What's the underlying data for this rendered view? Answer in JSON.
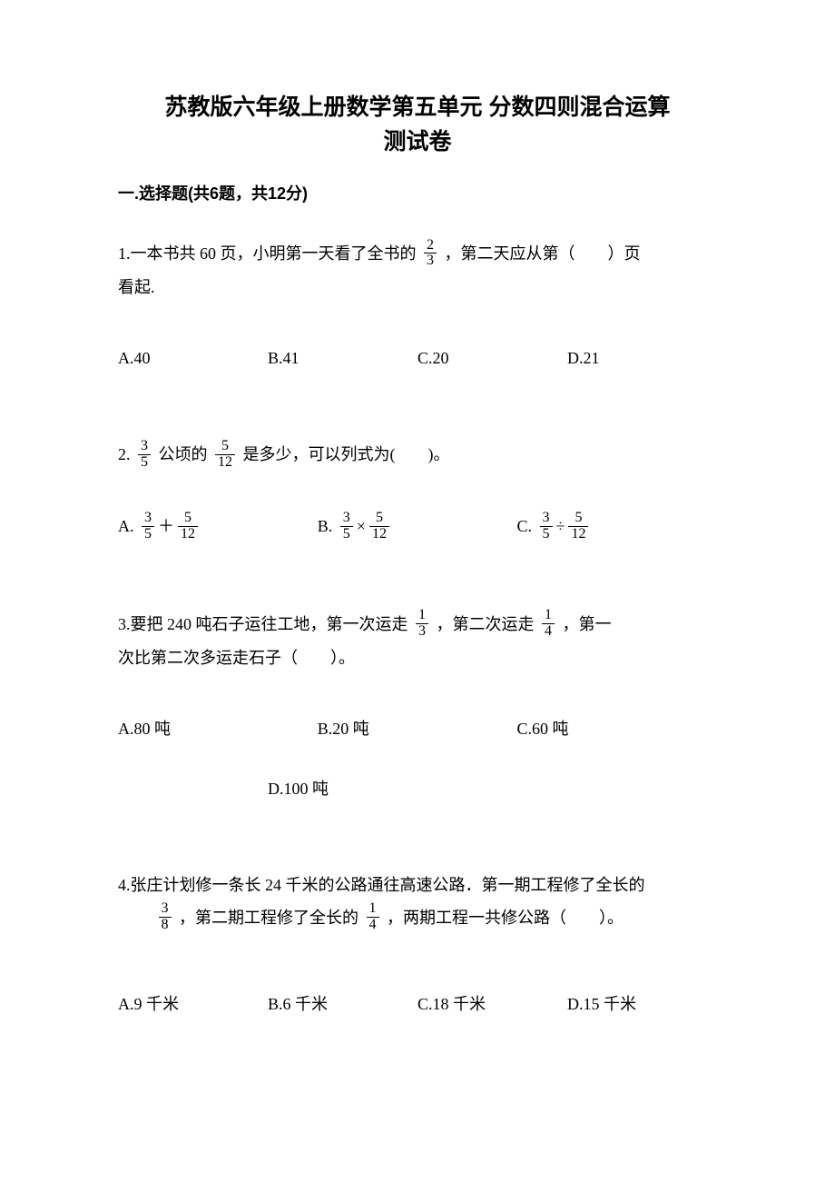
{
  "title_line1": "苏教版六年级上册数学第五单元 分数四则混合运算",
  "title_line2": "测试卷",
  "section1_header": "一.选择题(共6题，共12分)",
  "q1": {
    "text_a": "1.一本书共 60 页，小明第一天看了全书的",
    "frac": {
      "num": "2",
      "den": "3"
    },
    "text_b": "，第二天应从第（　　）页",
    "text_c": "看起.",
    "optA": "A.40",
    "optB": "B.41",
    "optC": "C.20",
    "optD": "D.21"
  },
  "q2": {
    "text_a": "2.",
    "frac1": {
      "num": "3",
      "den": "5"
    },
    "text_b": "公顷的",
    "frac2": {
      "num": "5",
      "den": "12"
    },
    "text_c": "是多少，可以列式为(　　)。",
    "optA_label": "A.",
    "optA_f1": {
      "num": "3",
      "den": "5"
    },
    "optA_op": "＋",
    "optA_f2": {
      "num": "5",
      "den": "12"
    },
    "optB_label": "B.",
    "optB_f1": {
      "num": "3",
      "den": "5"
    },
    "optB_op": "×",
    "optB_f2": {
      "num": "5",
      "den": "12"
    },
    "optC_label": "C.",
    "optC_f1": {
      "num": "3",
      "den": "5"
    },
    "optC_op": "÷",
    "optC_f2": {
      "num": "5",
      "den": "12"
    }
  },
  "q3": {
    "text_a": "3.要把 240 吨石子运往工地，第一次运走",
    "frac1": {
      "num": "1",
      "den": "3"
    },
    "text_b": "，第二次运走",
    "frac2": {
      "num": "1",
      "den": "4"
    },
    "text_c": "，第一",
    "text_d": "次比第二次多运走石子（　　）。",
    "optA": "A.80 吨",
    "optB": "B.20 吨",
    "optC": "C.60 吨",
    "optD": "D.100 吨"
  },
  "q4": {
    "text_a": "4.张庄计划修一条长 24 千米的公路通往高速公路．第一期工程修了全长的",
    "frac1": {
      "num": "3",
      "den": "8"
    },
    "text_b": "，第二期工程修了全长的",
    "frac2": {
      "num": "1",
      "den": "4"
    },
    "text_c": "，两期工程一共修公路（　　）。",
    "optA": "A.9 千米",
    "optB": "B.6 千米",
    "optC": "C.18 千米",
    "optD": "D.15 千米"
  }
}
